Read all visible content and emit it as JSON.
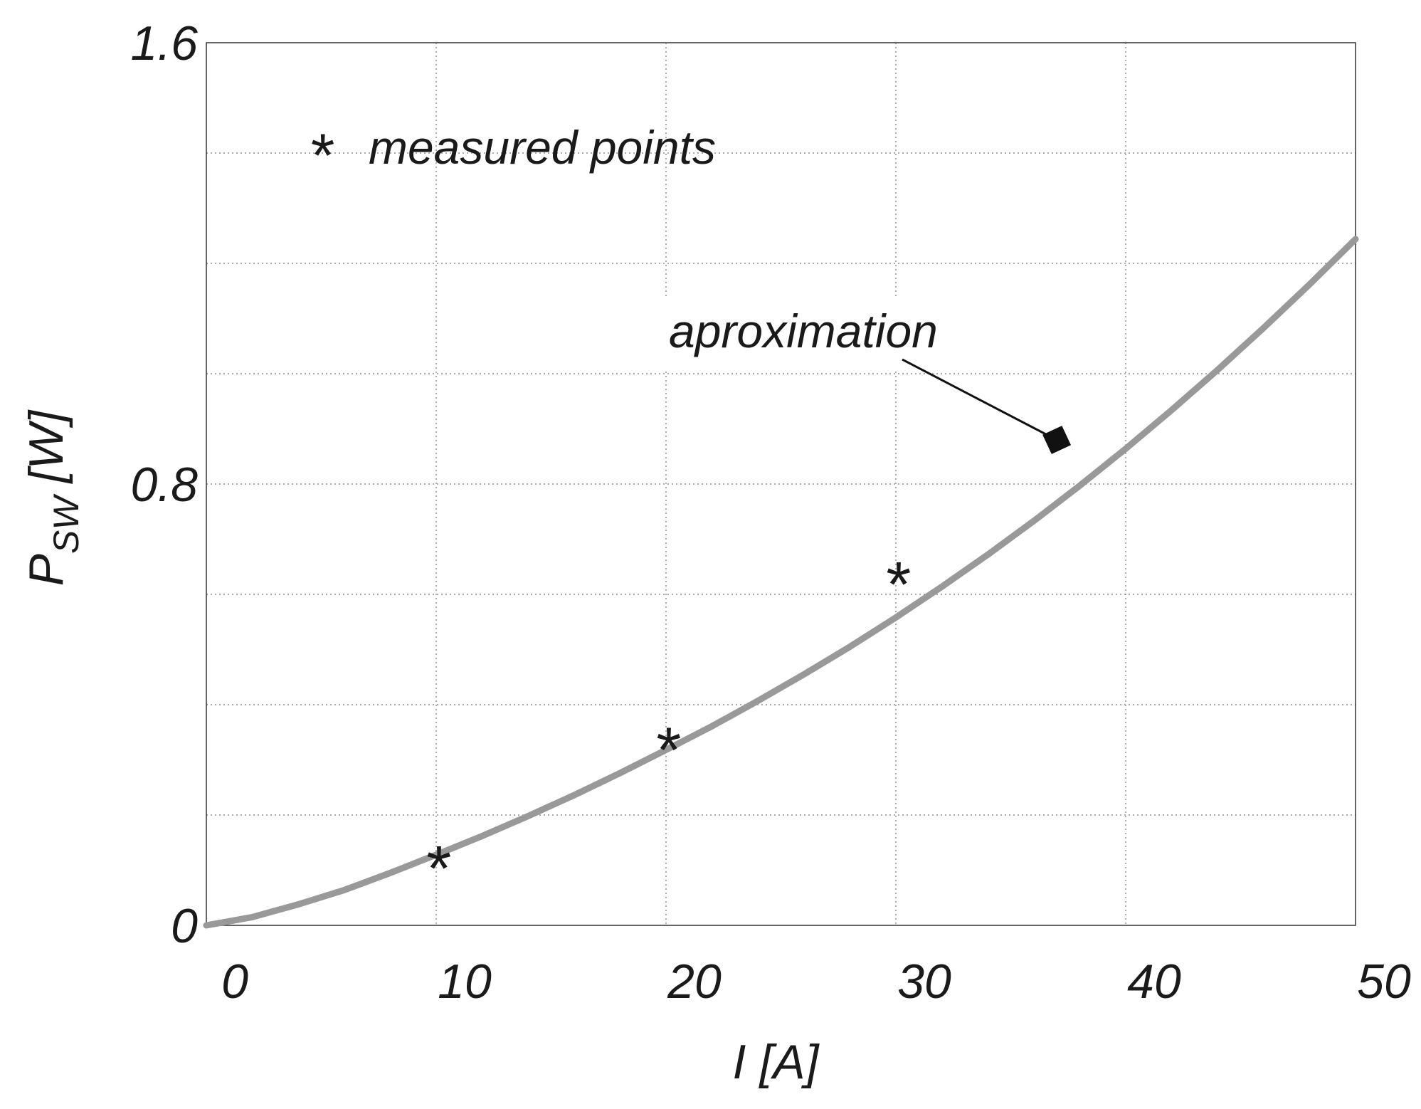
{
  "chart_data": {
    "type": "line",
    "xlabel": "I [A]",
    "ylabel": {
      "main": "P",
      "subscript": "SW",
      "unit": " [W]"
    },
    "xlim": [
      0,
      50
    ],
    "ylim": [
      0,
      1.6
    ],
    "x_ticks": [
      0,
      10,
      20,
      30,
      40,
      50
    ],
    "x_tick_labels": [
      "0",
      "10",
      "20",
      "30",
      "40",
      "50"
    ],
    "y_ticks": [
      0,
      0.2,
      0.4,
      0.6,
      0.8,
      1.0,
      1.2,
      1.4,
      1.6
    ],
    "y_tick_labels": [
      "0",
      "",
      "",
      "",
      "0.8",
      "",
      "",
      "",
      "1.6"
    ],
    "grid": true,
    "series": [
      {
        "name": "aproximation",
        "style": "line",
        "color": "#999999",
        "x": [
          0,
          2,
          4,
          6,
          8,
          10,
          12,
          14,
          16,
          18,
          20,
          22,
          24,
          26,
          28,
          30,
          32,
          34,
          36,
          38,
          40,
          42,
          44,
          46,
          48,
          50
        ],
        "y": [
          0,
          0.015,
          0.038,
          0.064,
          0.095,
          0.128,
          0.162,
          0.198,
          0.236,
          0.276,
          0.318,
          0.361,
          0.407,
          0.455,
          0.505,
          0.558,
          0.614,
          0.672,
          0.733,
          0.797,
          0.864,
          0.934,
          1.007,
          1.083,
          1.162,
          1.244
        ]
      },
      {
        "name": "measured points",
        "style": "scatter",
        "marker": "*",
        "color": "#1a1a1a",
        "x": [
          10,
          20,
          30
        ],
        "y": [
          0.115,
          0.33,
          0.63
        ]
      }
    ],
    "annotations": [
      {
        "text": "measured points",
        "marker": "*",
        "position": "upper-left"
      },
      {
        "text": "aproximation",
        "points_to": {
          "x": 37,
          "y": 0.88
        },
        "marker": "filled-square"
      }
    ]
  }
}
